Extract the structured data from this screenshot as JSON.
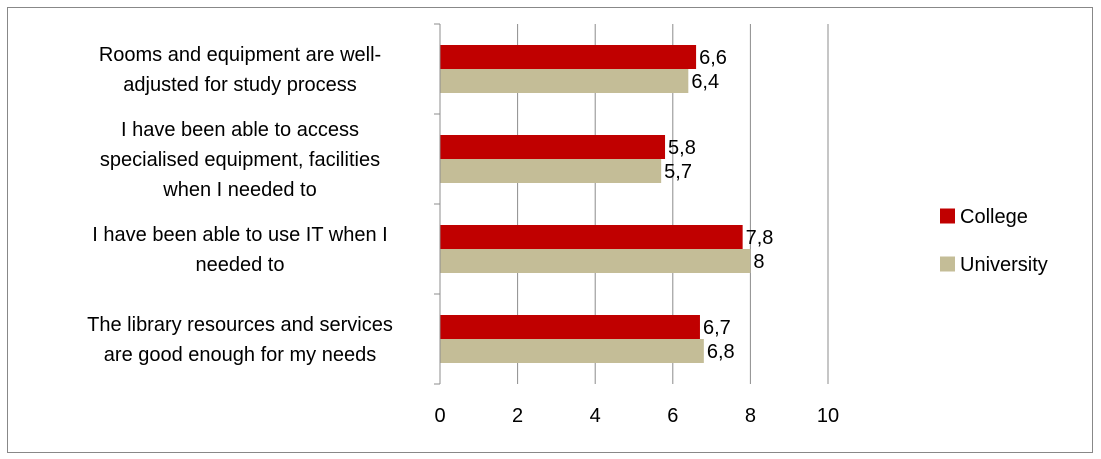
{
  "chart_data": {
    "type": "bar",
    "orientation": "horizontal",
    "categories": [
      [
        "Rooms and equipment are well-",
        "adjusted for study process"
      ],
      [
        "I have been able to access",
        "specialised equipment, facilities",
        "when I needed to"
      ],
      [
        "I have been able to use IT when I",
        "needed to"
      ],
      [
        "The library resources and services",
        "are good enough for my needs"
      ]
    ],
    "series": [
      {
        "name": "College",
        "color": "#c00000",
        "values": [
          6.6,
          5.8,
          7.8,
          6.7
        ],
        "labels": [
          "6,6",
          "5,8",
          "7,8",
          "6,7"
        ]
      },
      {
        "name": "University",
        "color": "#c4bd97",
        "values": [
          6.4,
          5.7,
          8,
          6.8
        ],
        "labels": [
          "6,4",
          "5,7",
          "8",
          "6,8"
        ]
      }
    ],
    "xlim": [
      0,
      10
    ],
    "xticks": [
      0,
      2,
      4,
      6,
      8,
      10
    ],
    "xtick_labels": [
      "0",
      "2",
      "4",
      "6",
      "8",
      "10"
    ],
    "grid": "vertical",
    "legend_position": "right",
    "title": "",
    "xlabel": "",
    "ylabel": ""
  }
}
